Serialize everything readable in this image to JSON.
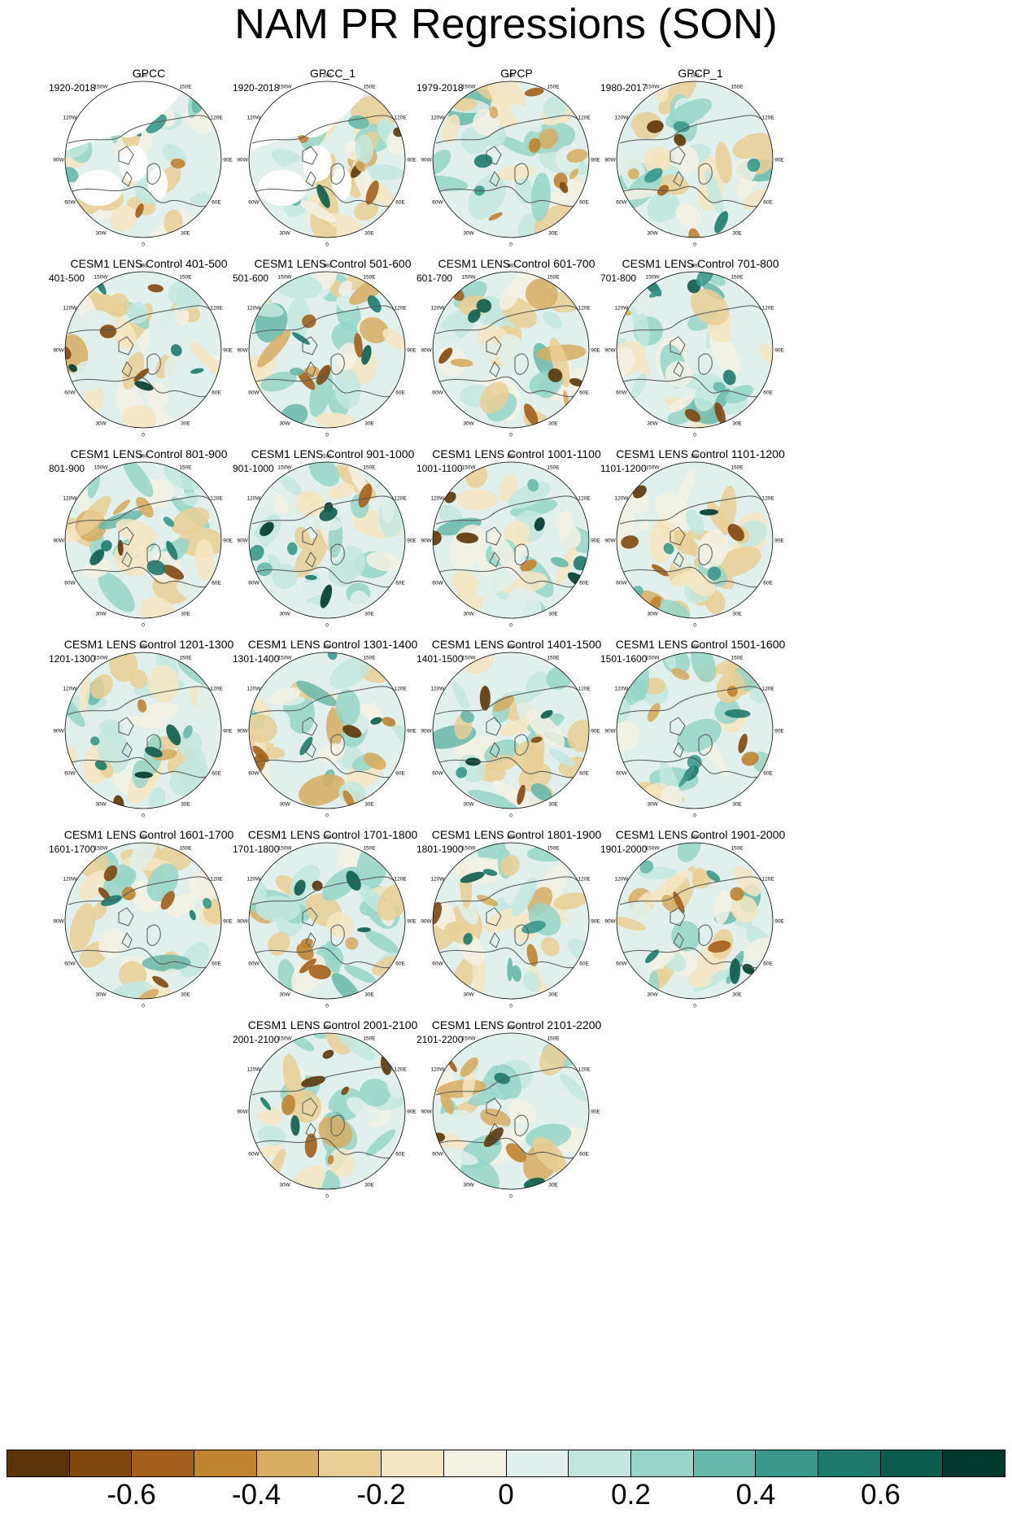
{
  "title": "NAM PR Regressions (SON)",
  "lon_labels": [
    "180",
    "150E",
    "120E",
    "90E",
    "60E",
    "30E",
    "0",
    "30W",
    "60W",
    "90W",
    "120W",
    "150W"
  ],
  "panels": [
    {
      "title": "GPCC",
      "period": "1920-2018",
      "seed": 3,
      "land_mask": true
    },
    {
      "title": "GPCC_1",
      "period": "1920-2018",
      "seed": 7,
      "land_mask": true
    },
    {
      "title": "GPCP",
      "period": "1979-2018",
      "seed": 11,
      "land_mask": false
    },
    {
      "title": "GPCP_1",
      "period": "1980-2017",
      "seed": 13,
      "land_mask": false
    },
    {
      "title": "CESM1 LENS Control 401-500",
      "period": "401-500",
      "seed": 17,
      "land_mask": false
    },
    {
      "title": "CESM1 LENS Control 501-600",
      "period": "501-600",
      "seed": 19,
      "land_mask": false
    },
    {
      "title": "CESM1 LENS Control 601-700",
      "period": "601-700",
      "seed": 23,
      "land_mask": false
    },
    {
      "title": "CESM1 LENS Control 701-800",
      "period": "701-800",
      "seed": 29,
      "land_mask": false
    },
    {
      "title": "CESM1 LENS Control 801-900",
      "period": "801-900",
      "seed": 31,
      "land_mask": false
    },
    {
      "title": "CESM1 LENS Control 901-1000",
      "period": "901-1000",
      "seed": 37,
      "land_mask": false
    },
    {
      "title": "CESM1 LENS Control 1001-1100",
      "period": "1001-1100",
      "seed": 41,
      "land_mask": false
    },
    {
      "title": "CESM1 LENS Control 1101-1200",
      "period": "1101-1200",
      "seed": 43,
      "land_mask": false
    },
    {
      "title": "CESM1 LENS Control 1201-1300",
      "period": "1201-1300",
      "seed": 47,
      "land_mask": false
    },
    {
      "title": "CESM1 LENS Control 1301-1400",
      "period": "1301-1400",
      "seed": 53,
      "land_mask": false
    },
    {
      "title": "CESM1 LENS Control 1401-1500",
      "period": "1401-1500",
      "seed": 59,
      "land_mask": false
    },
    {
      "title": "CESM1 LENS Control 1501-1600",
      "period": "1501-1600",
      "seed": 61,
      "land_mask": false
    },
    {
      "title": "CESM1 LENS Control 1601-1700",
      "period": "1601-1700",
      "seed": 67,
      "land_mask": false
    },
    {
      "title": "CESM1 LENS Control 1701-1800",
      "period": "1701-1800",
      "seed": 71,
      "land_mask": false
    },
    {
      "title": "CESM1 LENS Control 1801-1900",
      "period": "1801-1900",
      "seed": 73,
      "land_mask": false
    },
    {
      "title": "CESM1 LENS Control 1901-2000",
      "period": "1901-2000",
      "seed": 79,
      "land_mask": false
    },
    {
      "title": "CESM1 LENS Control 2001-2100",
      "period": "2001-2100",
      "seed": 83,
      "land_mask": false
    },
    {
      "title": "CESM1 LENS Control 2101-2200",
      "period": "2101-2200",
      "seed": 89,
      "land_mask": false
    }
  ],
  "colorbar": {
    "colors": [
      "#5b3508",
      "#80470f",
      "#a35f1b",
      "#c0832f",
      "#d6ad62",
      "#e9cf95",
      "#f4e6c3",
      "#f4f1e5",
      "#e1f0ec",
      "#c3e7df",
      "#96d5c8",
      "#67b8aa",
      "#3a988b",
      "#1d7a6b",
      "#0b5c4d",
      "#00392c"
    ],
    "labels": [
      "-0.6",
      "-0.4",
      "-0.2",
      "0",
      "0.2",
      "0.4",
      "0.6"
    ]
  }
}
